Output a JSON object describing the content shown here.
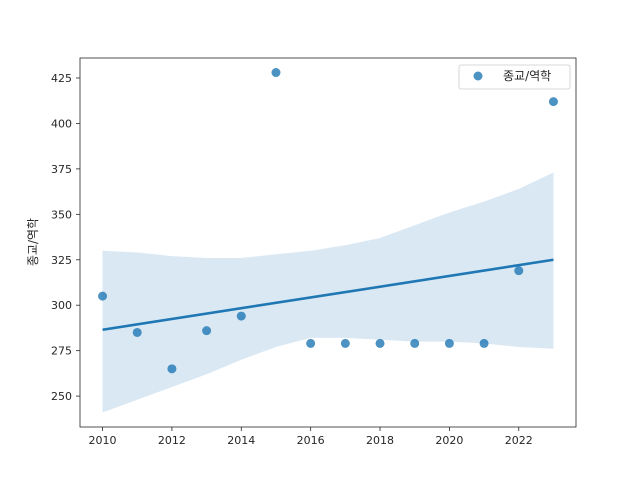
{
  "chart_data": {
    "type": "scatter",
    "ylabel": "종교/역학",
    "xlabel": "",
    "xlim": [
      2009.35,
      2023.65
    ],
    "ylim": [
      233,
      436
    ],
    "xticks": [
      2010,
      2012,
      2014,
      2016,
      2018,
      2020,
      2022
    ],
    "yticks": [
      250,
      275,
      300,
      325,
      350,
      375,
      400,
      425
    ],
    "grid": false,
    "legend": {
      "placement": "top-right",
      "entries": [
        "종교/역학"
      ]
    },
    "series": [
      {
        "name": "종교/역학",
        "color": "#1f77b4",
        "x": [
          2010,
          2011,
          2012,
          2013,
          2014,
          2015,
          2016,
          2017,
          2018,
          2019,
          2020,
          2021,
          2022,
          2023
        ],
        "y": [
          305,
          285,
          265,
          286,
          294,
          428,
          279,
          279,
          279,
          279,
          279,
          279,
          319,
          412
        ]
      }
    ],
    "regression": {
      "color": "#1f77b4",
      "x": [
        2010,
        2023
      ],
      "y": [
        286.5,
        325
      ]
    },
    "confidence_band": {
      "color": "#aecde6",
      "x": [
        2010,
        2011,
        2012,
        2013,
        2014,
        2015,
        2016,
        2017,
        2018,
        2019,
        2020,
        2021,
        2022,
        2023
      ],
      "upper": [
        330,
        329,
        327,
        326,
        326,
        328,
        330,
        333,
        337,
        344,
        351,
        357,
        364,
        373
      ],
      "lower": [
        241,
        248,
        255,
        262,
        270,
        277,
        282,
        282,
        281,
        280,
        280,
        279,
        277,
        276
      ]
    }
  }
}
